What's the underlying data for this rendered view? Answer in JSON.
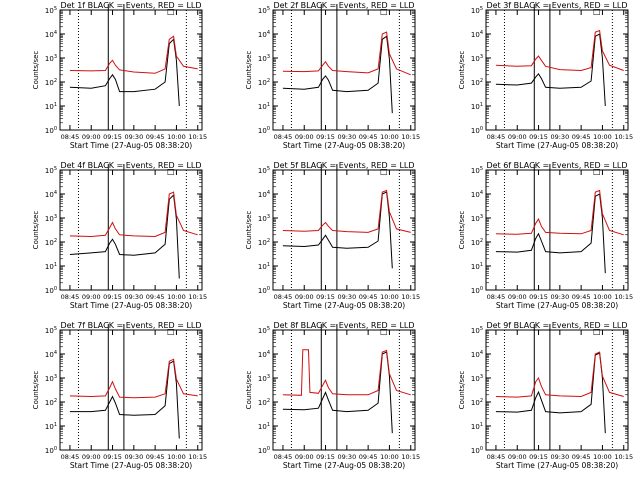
{
  "style": {
    "black_color": "#000000",
    "red_color": "#d01010"
  },
  "common": {
    "x_ticks": [
      "08:45",
      "09:00",
      "09:15",
      "09:30",
      "09:45",
      "10:00",
      "10:15"
    ],
    "y_ticks": [
      "10^0",
      "10^1",
      "10^2",
      "10^3",
      "10^4",
      "10^5"
    ],
    "xlabel": "Start Time (27-Aug-05 08:38:20)",
    "ylabel": "Counts/sec",
    "marker_box": "□"
  },
  "chart_data": [
    {
      "title": "Det 1f  BLACK = Events,  RED = LLD",
      "type": "line",
      "scale": "log",
      "ylim": [
        1,
        100000
      ],
      "xlim": [
        "08:38",
        "10:18"
      ],
      "series": [
        {
          "name": "BLACK = Events",
          "color": "#000000",
          "x": [
            "08:45",
            "09:00",
            "09:10",
            "09:13",
            "09:15",
            "09:17",
            "09:20",
            "09:30",
            "09:45",
            "09:52",
            "09:55",
            "09:58",
            "10:00",
            "10:02"
          ],
          "y": [
            60,
            55,
            70,
            140,
            200,
            130,
            40,
            40,
            50,
            100,
            4000,
            6000,
            800,
            10
          ]
        },
        {
          "name": "RED = LLD",
          "color": "#d01010",
          "x": [
            "08:45",
            "09:00",
            "09:10",
            "09:13",
            "09:15",
            "09:17",
            "09:20",
            "09:30",
            "09:45",
            "09:52",
            "09:55",
            "09:58",
            "10:00",
            "10:05",
            "10:15"
          ],
          "y": [
            300,
            290,
            300,
            600,
            800,
            500,
            320,
            260,
            230,
            350,
            6000,
            8000,
            1200,
            450,
            350
          ]
        }
      ]
    },
    {
      "title": "Det 2f  BLACK = Events,  RED = LLD",
      "type": "line",
      "scale": "log",
      "ylim": [
        1,
        100000
      ],
      "xlim": [
        "08:38",
        "10:18"
      ],
      "series": [
        {
          "name": "BLACK = Events",
          "color": "#000000",
          "x": [
            "08:45",
            "09:00",
            "09:10",
            "09:13",
            "09:15",
            "09:17",
            "09:20",
            "09:30",
            "09:45",
            "09:52",
            "09:55",
            "09:58",
            "10:00",
            "10:02"
          ],
          "y": [
            55,
            50,
            60,
            130,
            180,
            120,
            45,
            40,
            45,
            90,
            6000,
            8000,
            900,
            5
          ]
        },
        {
          "name": "RED = LLD",
          "color": "#d01010",
          "x": [
            "08:45",
            "09:00",
            "09:10",
            "09:13",
            "09:15",
            "09:17",
            "09:20",
            "09:30",
            "09:45",
            "09:52",
            "09:55",
            "09:58",
            "10:00",
            "10:05",
            "10:15"
          ],
          "y": [
            280,
            270,
            290,
            500,
            700,
            450,
            300,
            270,
            240,
            350,
            10000,
            12000,
            1500,
            350,
            200
          ]
        }
      ]
    },
    {
      "title": "Det 3f  BLACK = Events,  RED = LLD",
      "type": "line",
      "scale": "log",
      "ylim": [
        1,
        100000
      ],
      "xlim": [
        "08:38",
        "10:18"
      ],
      "series": [
        {
          "name": "BLACK = Events",
          "color": "#000000",
          "x": [
            "08:45",
            "09:00",
            "09:10",
            "09:13",
            "09:15",
            "09:17",
            "09:20",
            "09:30",
            "09:45",
            "09:52",
            "09:55",
            "09:58",
            "10:00",
            "10:02"
          ],
          "y": [
            80,
            75,
            90,
            160,
            220,
            140,
            60,
            55,
            60,
            110,
            8000,
            10000,
            1000,
            10
          ]
        },
        {
          "name": "RED = LLD",
          "color": "#d01010",
          "x": [
            "08:45",
            "09:00",
            "09:10",
            "09:13",
            "09:15",
            "09:17",
            "09:20",
            "09:30",
            "09:45",
            "09:52",
            "09:55",
            "09:58",
            "10:00",
            "10:05",
            "10:15"
          ],
          "y": [
            500,
            450,
            480,
            900,
            1200,
            800,
            450,
            330,
            300,
            400,
            12000,
            14000,
            2000,
            500,
            300
          ]
        }
      ]
    },
    {
      "title": "Det 4f  BLACK = Events,  RED = LLD",
      "type": "line",
      "scale": "log",
      "ylim": [
        1,
        100000
      ],
      "xlim": [
        "08:38",
        "10:18"
      ],
      "series": [
        {
          "name": "BLACK = Events",
          "color": "#000000",
          "x": [
            "08:45",
            "09:00",
            "09:10",
            "09:13",
            "09:15",
            "09:17",
            "09:20",
            "09:30",
            "09:45",
            "09:52",
            "09:55",
            "09:58",
            "10:00",
            "10:02"
          ],
          "y": [
            30,
            35,
            40,
            90,
            130,
            80,
            30,
            28,
            35,
            80,
            6000,
            9000,
            900,
            3
          ]
        },
        {
          "name": "RED = LLD",
          "color": "#d01010",
          "x": [
            "08:45",
            "09:00",
            "09:10",
            "09:13",
            "09:15",
            "09:17",
            "09:20",
            "09:30",
            "09:45",
            "09:52",
            "09:55",
            "09:58",
            "10:00",
            "10:05",
            "10:15"
          ],
          "y": [
            180,
            170,
            190,
            400,
            650,
            350,
            200,
            180,
            170,
            250,
            10000,
            12000,
            1300,
            300,
            200
          ]
        }
      ]
    },
    {
      "title": "Det 5f  BLACK = Events,  RED = LLD",
      "type": "line",
      "scale": "log",
      "ylim": [
        1,
        100000
      ],
      "xlim": [
        "08:38",
        "10:18"
      ],
      "series": [
        {
          "name": "BLACK = Events",
          "color": "#000000",
          "x": [
            "08:45",
            "09:00",
            "09:10",
            "09:13",
            "09:15",
            "09:17",
            "09:20",
            "09:30",
            "09:45",
            "09:52",
            "09:55",
            "09:58",
            "10:00",
            "10:02"
          ],
          "y": [
            70,
            65,
            75,
            130,
            190,
            120,
            60,
            55,
            60,
            110,
            10000,
            12000,
            1100,
            8
          ]
        },
        {
          "name": "RED = LLD",
          "color": "#d01010",
          "x": [
            "08:45",
            "09:00",
            "09:10",
            "09:13",
            "09:15",
            "09:17",
            "09:20",
            "09:30",
            "09:45",
            "09:52",
            "09:55",
            "09:58",
            "10:00",
            "10:05",
            "10:15"
          ],
          "y": [
            300,
            280,
            300,
            500,
            650,
            450,
            300,
            270,
            250,
            350,
            12000,
            14000,
            1800,
            350,
            250
          ]
        }
      ]
    },
    {
      "title": "Det 6f  BLACK = Events,  RED = LLD",
      "type": "line",
      "scale": "log",
      "ylim": [
        1,
        100000
      ],
      "xlim": [
        "08:38",
        "10:18"
      ],
      "series": [
        {
          "name": "BLACK = Events",
          "color": "#000000",
          "x": [
            "08:45",
            "09:00",
            "09:10",
            "09:13",
            "09:15",
            "09:17",
            "09:20",
            "09:30",
            "09:45",
            "09:52",
            "09:55",
            "09:58",
            "10:00",
            "10:02"
          ],
          "y": [
            40,
            38,
            45,
            140,
            220,
            110,
            40,
            35,
            40,
            90,
            8000,
            10000,
            1000,
            5
          ]
        },
        {
          "name": "RED = LLD",
          "color": "#d01010",
          "x": [
            "08:45",
            "09:00",
            "09:10",
            "09:13",
            "09:15",
            "09:17",
            "09:20",
            "09:30",
            "09:45",
            "09:52",
            "09:55",
            "09:58",
            "10:00",
            "10:05",
            "10:15"
          ],
          "y": [
            220,
            210,
            230,
            600,
            900,
            450,
            250,
            230,
            220,
            300,
            12000,
            14000,
            1500,
            300,
            200
          ]
        }
      ]
    },
    {
      "title": "Det 7f  BLACK = Events,  RED = LLD",
      "type": "line",
      "scale": "log",
      "ylim": [
        1,
        100000
      ],
      "xlim": [
        "08:38",
        "10:18"
      ],
      "series": [
        {
          "name": "BLACK = Events",
          "color": "#000000",
          "x": [
            "08:45",
            "09:00",
            "09:10",
            "09:13",
            "09:15",
            "09:17",
            "09:20",
            "09:30",
            "09:45",
            "09:52",
            "09:55",
            "09:58",
            "10:00",
            "10:02"
          ],
          "y": [
            40,
            40,
            45,
            100,
            170,
            90,
            30,
            28,
            30,
            70,
            4000,
            5000,
            600,
            3
          ]
        },
        {
          "name": "RED = LLD",
          "color": "#d01010",
          "x": [
            "08:45",
            "09:00",
            "09:10",
            "09:13",
            "09:15",
            "09:17",
            "09:20",
            "09:30",
            "09:45",
            "09:52",
            "09:55",
            "09:58",
            "10:00",
            "10:05",
            "10:15"
          ],
          "y": [
            180,
            170,
            180,
            400,
            700,
            350,
            160,
            150,
            160,
            220,
            5000,
            6000,
            900,
            220,
            180
          ]
        }
      ]
    },
    {
      "title": "Det 8f  BLACK = Events,  RED = LLD",
      "type": "line",
      "scale": "log",
      "ylim": [
        1,
        100000
      ],
      "xlim": [
        "08:38",
        "10:18"
      ],
      "series": [
        {
          "name": "BLACK = Events",
          "color": "#000000",
          "x": [
            "08:45",
            "09:00",
            "09:10",
            "09:13",
            "09:15",
            "09:17",
            "09:20",
            "09:30",
            "09:45",
            "09:52",
            "09:55",
            "09:58",
            "10:00",
            "10:02"
          ],
          "y": [
            50,
            48,
            55,
            140,
            250,
            120,
            45,
            40,
            45,
            90,
            10000,
            12000,
            1200,
            5
          ]
        },
        {
          "name": "RED = LLD",
          "color": "#d01010",
          "x": [
            "08:45",
            "08:58",
            "08:59",
            "09:03",
            "09:04",
            "09:10",
            "09:13",
            "09:15",
            "09:17",
            "09:20",
            "09:30",
            "09:45",
            "09:52",
            "09:55",
            "09:58",
            "10:00",
            "10:05",
            "10:15"
          ],
          "y": [
            200,
            190,
            15000,
            15000,
            250,
            230,
            500,
            800,
            400,
            220,
            200,
            200,
            300,
            12000,
            14000,
            1500,
            300,
            200
          ]
        }
      ]
    },
    {
      "title": "Det 9f  BLACK = Events,  RED = LLD",
      "type": "line",
      "scale": "log",
      "ylim": [
        1,
        100000
      ],
      "xlim": [
        "08:38",
        "10:18"
      ],
      "series": [
        {
          "name": "BLACK = Events",
          "color": "#000000",
          "x": [
            "08:45",
            "09:00",
            "09:10",
            "09:13",
            "09:15",
            "09:17",
            "09:20",
            "09:30",
            "09:45",
            "09:52",
            "09:55",
            "09:58",
            "10:00",
            "10:02"
          ],
          "y": [
            40,
            38,
            45,
            150,
            260,
            120,
            40,
            35,
            40,
            80,
            9000,
            11000,
            1000,
            5
          ]
        },
        {
          "name": "RED = LLD",
          "color": "#d01010",
          "x": [
            "08:45",
            "09:00",
            "09:10",
            "09:13",
            "09:15",
            "09:17",
            "09:20",
            "09:30",
            "09:45",
            "09:52",
            "09:55",
            "09:58",
            "10:00",
            "10:05",
            "10:15"
          ],
          "y": [
            170,
            160,
            180,
            700,
            1000,
            450,
            200,
            180,
            170,
            250,
            10000,
            12000,
            1200,
            250,
            170
          ]
        }
      ]
    }
  ]
}
